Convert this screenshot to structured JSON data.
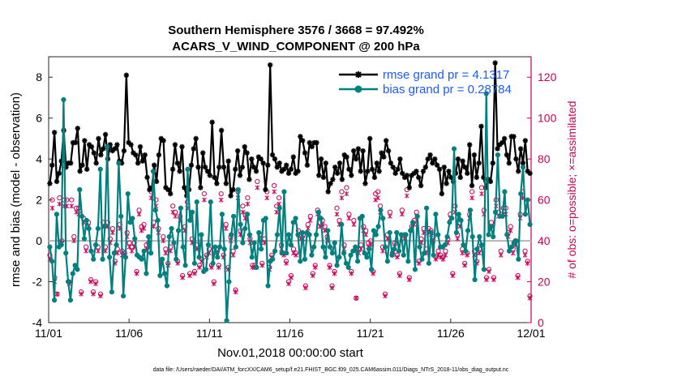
{
  "chart_data": {
    "type": "line",
    "title_line1": "Southern Hemisphere 3576 / 3668 = 97.492%",
    "title_line2": "ACARS_V_WIND_COMPONENT @ 200 hPa",
    "ylabel": "rmse and bias (model - observation)",
    "ylabel_right": "# of obs: o=possible; ×=assimilated",
    "xlabel": "Nov.01,2018 00:00:00 start",
    "footnote": "data file: /Users/raeder/DAI/ATM_forcXX/CAM6_setup/f.e21.FHIST_BGC.f09_025.CAM6assim.011/Diags_NTrS_2018-11/obs_diag_output.nc",
    "x_ticks": [
      "11/01",
      "11/06",
      "11/11",
      "11/16",
      "11/21",
      "11/26",
      "12/01"
    ],
    "y_ticks": [
      "-4",
      "-2",
      "0",
      "2",
      "4",
      "6",
      "8"
    ],
    "y_right_ticks": [
      "0",
      "20",
      "40",
      "60",
      "80",
      "100",
      "120"
    ],
    "ylim": [
      -4,
      9
    ],
    "ylim_right": [
      0,
      130
    ],
    "xlim": [
      0,
      30
    ],
    "zero_line": 0,
    "legend": [
      "rmse grand pr = 4.1317",
      "bias grand pr = 0.28784"
    ],
    "series": [
      {
        "name": "rmse",
        "color": "#000000",
        "values": [
          2.8,
          3.7,
          5.3,
          2.9,
          3.3,
          3.9,
          5.4,
          3.6,
          3.8,
          3.8,
          4.8,
          4.8,
          5.5,
          3.4,
          3.7,
          4.9,
          3.5,
          4.7,
          4.6,
          4.3,
          3.8,
          5.0,
          4.2,
          4.5,
          5.2,
          4.0,
          4.7,
          4.4,
          4.5,
          4.7,
          3.9,
          3.8,
          4.4,
          8.1,
          4.8,
          4.7,
          4.3,
          4.2,
          3.8,
          4.6,
          3.9,
          4.2,
          3.1,
          2.5,
          2.6,
          3.7,
          2.9,
          4.2,
          5.0,
          4.9,
          2.6,
          2.5,
          2.3,
          3.5,
          4.7,
          3.8,
          3.4,
          4.6,
          2.6,
          2.2,
          2.5,
          3.7,
          4.5,
          5.0,
          3.6,
          2.6,
          4.3,
          3.6,
          3.4,
          3.2,
          5.8,
          3.1,
          2.8,
          3.6,
          5.4,
          3.6,
          2.8,
          3.9,
          2.2,
          2.5,
          3.5,
          4.4,
          3.2,
          3.6,
          4.6,
          4.3,
          3.0,
          4.0,
          3.6,
          3.4,
          4.1,
          4.0,
          3.8,
          2.5,
          3.7,
          8.6,
          4.2,
          4.0,
          3.6,
          3.8,
          3.4,
          3.5,
          3.7,
          3.3,
          3.5,
          4.1,
          3.3,
          3.4,
          5.1,
          4.9,
          4.3,
          3.7,
          4.8,
          4.6,
          4.8,
          4.8,
          3.2,
          4.0,
          3.1,
          3.8,
          2.4,
          2.8,
          3.0,
          3.6,
          3.3,
          3.8,
          3.0,
          4.2,
          4.1,
          3.5,
          3.2,
          4.4,
          4.0,
          4.5,
          3.4,
          4.4,
          2.8,
          3.4,
          5.0,
          3.5,
          3.1,
          3.8,
          3.4,
          4.3,
          4.1,
          4.9,
          4.4,
          3.8,
          3.6,
          3.3,
          3.5,
          4.0,
          3.3,
          3.1,
          3.2,
          2.6,
          3.2,
          3.3,
          3.4,
          3.1,
          2.7,
          3.4,
          3.6,
          4.0,
          4.2,
          3.8,
          4.0,
          3.7,
          3.5,
          2.3,
          3.6,
          2.8,
          3.4,
          3.1,
          2.9,
          3.3,
          4.0,
          3.1,
          3.9,
          3.6,
          3.3,
          4.7,
          2.7,
          4.2,
          3.1,
          3.8,
          5.6,
          3.1,
          2.6,
          3.0,
          2.9,
          3.8,
          8.7,
          4.5,
          4.7,
          4.8,
          5.0,
          4.2,
          3.8,
          5.1,
          5.1,
          4.0,
          3.4,
          4.5,
          3.8,
          4.9,
          3.4,
          3.3
        ],
        "marker": "asterisk"
      },
      {
        "name": "bias",
        "color": "#00807f",
        "values": [
          -0.3,
          -1.0,
          -2.9,
          1.3,
          -0.3,
          -0.2,
          6.9,
          -0.6,
          -2.0,
          -2.9,
          -1.6,
          -1.2,
          -1.4,
          2.5,
          1.2,
          0.1,
          1.0,
          0.6,
          -0.5,
          -0.9,
          -0.2,
          0.6,
          3.5,
          -0.9,
          0.7,
          4.6,
          -0.8,
          -2.5,
          -0.6,
          -0.2,
          3.8,
          1.2,
          -2.7,
          -0.8,
          2.3,
          0.9,
          1.1,
          0.1,
          -0.7,
          -0.8,
          -0.9,
          -0.5,
          -1.6,
          0.2,
          -0.6,
          3.4,
          1.5,
          1.0,
          -1.7,
          -0.9,
          -1.6,
          -2.2,
          0.2,
          0.6,
          -0.1,
          -0.9,
          0.5,
          1.6,
          -0.3,
          -1.2,
          3.5,
          1.0,
          1.4,
          -1.1,
          1.9,
          -0.8,
          0.3,
          -1.5,
          -1.4,
          -0.2,
          1.9,
          -1.1,
          -0.3,
          -0.8,
          -0.3,
          1.3,
          -0.4,
          -3.9,
          -2.0,
          0.3,
          1.2,
          -0.3,
          2.5,
          0.8,
          -0.1,
          0.6,
          1.3,
          0.3,
          -0.8,
          -0.1,
          -1.3,
          0.4,
          -0.4,
          1.0,
          1.1,
          -2.2,
          -1.0,
          -0.9,
          -0.5,
          0.3,
          1.6,
          -0.6,
          2.4,
          -0.6,
          0.3,
          -0.2,
          0.9,
          1.1,
          0.3,
          -1.0,
          0.4,
          -0.9,
          0.4,
          0.3,
          -0.7,
          -0.3,
          0.3,
          1.4,
          1.1,
          -0.3,
          -0.8,
          0.5,
          -0.3,
          -0.6,
          -0.1,
          -1.2,
          -0.8,
          0.8,
          -0.6,
          -1.1,
          -1.3,
          -0.7,
          -0.5,
          -0.3,
          -1.0,
          1.1,
          1.2,
          -0.6,
          -0.8,
          -0.4,
          -1.4,
          0.5,
          0.3,
          0.7,
          1.5,
          1.1,
          -0.3,
          -1.0,
          0.4,
          -0.7,
          -0.4,
          0.4,
          -0.5,
          0.3,
          -0.7,
          0.3,
          -1.0,
          0.5,
          0.9,
          -1.4,
          1.2,
          -0.3,
          -0.9,
          -0.6,
          1.6,
          -1.1,
          0.4,
          -0.7,
          1.3,
          0.3,
          -0.3,
          -0.3,
          -0.2,
          0.2,
          0.9,
          1.1,
          4.5,
          0.4,
          1.3,
          1.0,
          -0.2,
          -0.5,
          0.5,
          1.5,
          0.2,
          -1.9,
          -0.4,
          0.2,
          -0.2,
          -1.4,
          7.2,
          0.3,
          0.7,
          0.2,
          1.4,
          4.2,
          1.2,
          1.2,
          2.4,
          0.3,
          -0.5,
          -0.3,
          -0.1,
          0.0,
          -0.9,
          2.3,
          3.6,
          1.3,
          2.0,
          0.8
        ],
        "marker": "circle"
      }
    ],
    "obs_possible": {
      "name": "possible",
      "color": "#cc0055",
      "values": [
        33,
        60,
        22,
        14,
        61,
        40,
        60,
        60,
        20,
        60,
        42,
        56,
        56,
        15,
        51,
        37,
        49,
        21,
        15,
        20,
        37,
        14,
        49,
        37,
        49,
        41,
        46,
        30,
        36,
        48,
        35,
        34,
        44,
        39,
        37,
        39,
        25,
        55,
        47,
        48,
        38,
        39,
        64,
        49,
        60,
        46,
        30,
        42,
        36,
        29,
        37,
        57,
        54,
        30,
        52,
        23,
        47,
        59,
        24,
        41,
        25,
        38,
        28,
        31,
        63,
        33,
        36,
        28,
        20,
        36,
        28,
        63,
        33,
        48,
        27,
        42,
        35,
        16,
        64,
        45,
        57,
        53,
        61,
        41,
        28,
        28,
        69,
        43,
        29,
        41,
        64,
        27,
        33,
        67,
        57,
        61,
        38,
        34,
        30,
        20,
        23,
        36,
        34,
        45,
        43,
        43,
        18,
        48,
        52,
        24,
        28,
        55,
        49,
        50,
        47,
        42,
        28,
        18,
        25,
        56,
        50,
        64,
        38,
        66,
        53,
        25,
        50,
        12,
        36,
        38,
        47,
        45,
        39,
        40,
        25,
        63,
        64,
        57,
        37,
        14,
        43,
        54,
        34,
        39,
        33,
        24,
        55,
        43,
        65,
        22,
        47,
        50,
        54,
        30,
        41,
        46,
        36,
        46,
        45,
        42,
        32,
        35,
        33,
        32,
        35,
        41,
        53,
        24,
        57,
        43,
        49,
        36,
        29,
        34,
        53,
        64,
        35,
        30,
        36,
        66,
        55,
        22,
        26,
        49,
        22,
        60,
        54,
        35,
        56,
        56,
        44,
        47,
        36,
        40,
        23,
        53,
        64,
        35,
        30,
        13
      ]
    },
    "obs_assimilated": {
      "name": "assimilated",
      "color": "#cc0055",
      "values": [
        31,
        56,
        20,
        14,
        58,
        39,
        57,
        57,
        19,
        57,
        40,
        54,
        53,
        14,
        49,
        35,
        47,
        20,
        14,
        19,
        35,
        13,
        47,
        35,
        47,
        39,
        44,
        29,
        34,
        46,
        33,
        33,
        42,
        37,
        35,
        37,
        24,
        53,
        45,
        46,
        36,
        37,
        61,
        47,
        57,
        44,
        29,
        40,
        34,
        28,
        35,
        54,
        52,
        29,
        50,
        22,
        45,
        56,
        23,
        39,
        24,
        36,
        27,
        30,
        60,
        32,
        34,
        27,
        19,
        34,
        27,
        60,
        32,
        46,
        26,
        40,
        33,
        15,
        61,
        43,
        54,
        51,
        58,
        39,
        27,
        27,
        66,
        41,
        28,
        39,
        61,
        26,
        32,
        64,
        54,
        58,
        36,
        33,
        29,
        19,
        22,
        34,
        33,
        43,
        41,
        41,
        17,
        46,
        50,
        23,
        27,
        53,
        47,
        48,
        45,
        40,
        27,
        17,
        24,
        53,
        48,
        61,
        36,
        63,
        51,
        24,
        48,
        12,
        34,
        36,
        45,
        43,
        37,
        38,
        24,
        60,
        61,
        54,
        35,
        13,
        41,
        52,
        33,
        37,
        32,
        23,
        53,
        41,
        62,
        21,
        45,
        48,
        52,
        29,
        39,
        44,
        34,
        44,
        43,
        40,
        31,
        33,
        32,
        31,
        33,
        39,
        51,
        23,
        54,
        41,
        47,
        34,
        28,
        33,
        51,
        61,
        33,
        29,
        34,
        63,
        53,
        21,
        25,
        47,
        21,
        57,
        52,
        33,
        53,
        53,
        42,
        45,
        34,
        38,
        22,
        51,
        61,
        33,
        29,
        12
      ]
    }
  }
}
